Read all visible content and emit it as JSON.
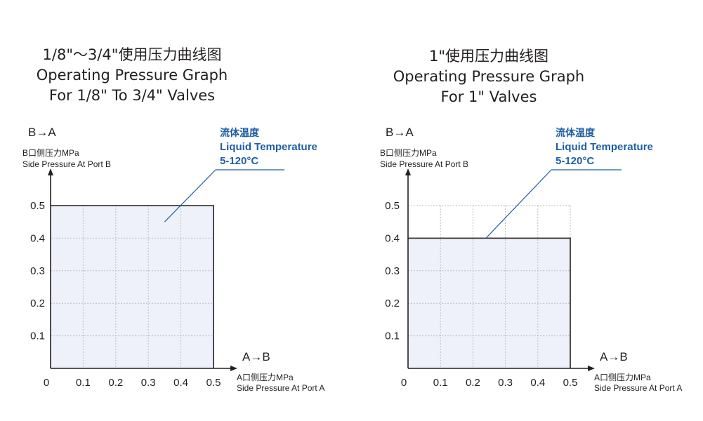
{
  "chart_data": [
    {
      "type": "area",
      "title_zh": "1/8\"～3/4\"使用压力曲线图",
      "title_en_1": "Operating Pressure Graph",
      "title_en_2": "For 1/8\" To 3/4\" Valves",
      "y_direction": "B→A",
      "ylabel_zh": "B口侧压力MPa",
      "ylabel_en": "Side Pressure At Port B",
      "x_direction": "A→B",
      "xlabel_zh": "A口侧压力MPa",
      "xlabel_en": "Side Pressure At Port A",
      "x_ticks": [
        "0",
        "0.1",
        "0.2",
        "0.3",
        "0.4",
        "0.5"
      ],
      "y_ticks": [
        "0.1",
        "0.2",
        "0.3",
        "0.4",
        "0.5"
      ],
      "xlim": [
        0,
        0.5
      ],
      "ylim": [
        0,
        0.5
      ],
      "grid": true,
      "region": {
        "x": [
          0,
          0.5
        ],
        "y": [
          0,
          0.5
        ]
      },
      "annotation": {
        "label_zh": "流体温度",
        "label_en": "Liquid Temperature",
        "range": "5-120°C",
        "point": [
          0.35,
          0.45
        ]
      }
    },
    {
      "type": "area",
      "title_zh": "1\"使用压力曲线图",
      "title_en_1": "Operating Pressure Graph",
      "title_en_2": "For 1\"  Valves",
      "y_direction": "B→A",
      "ylabel_zh": "B口侧压力MPa",
      "ylabel_en": "Side Pressure At Port B",
      "x_direction": "A→B",
      "xlabel_zh": "A口侧压力MPa",
      "xlabel_en": "Side Pressure At Port A",
      "x_ticks": [
        "0",
        "0.1",
        "0.2",
        "0.3",
        "0.4",
        "0.5"
      ],
      "y_ticks": [
        "0.1",
        "0.2",
        "0.3",
        "0.4",
        "0.5"
      ],
      "xlim": [
        0,
        0.5
      ],
      "ylim": [
        0,
        0.5
      ],
      "grid": true,
      "region": {
        "x": [
          0,
          0.5
        ],
        "y": [
          0,
          0.4
        ]
      },
      "annotation": {
        "label_zh": "流体温度",
        "label_en": "Liquid Temperature",
        "range": "5-120°C",
        "point": [
          0.24,
          0.4
        ]
      }
    }
  ],
  "colors": {
    "fill": "#eef1f9",
    "outline": "#231f20",
    "grid": "#bdbdbd",
    "accent": "#1f5fa5",
    "text": "#231f20"
  }
}
